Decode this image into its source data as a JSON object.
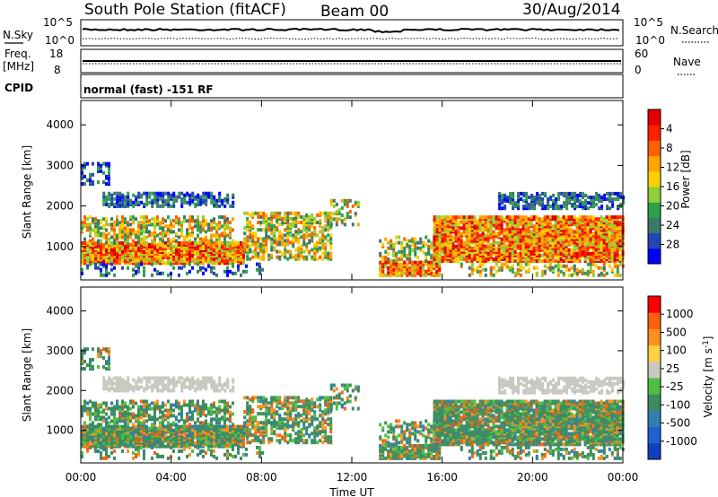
{
  "header": {
    "station": "South Pole Station (fitACF)",
    "beam": "Beam 00",
    "date": "30/Aug/2014"
  },
  "top_panels": {
    "nsky_label": "N.Sky",
    "nsearch_label": "N.Search",
    "noise_ticks": [
      "10^5",
      "10^0"
    ],
    "freq_label_1": "Freq.",
    "freq_label_2": "[MHz]",
    "freq_ticks": [
      "18",
      "8"
    ],
    "nave_label": "Nave",
    "nave_ticks": [
      "60",
      "0"
    ],
    "cpid_label": "CPID",
    "cpid_text": "normal (fast) -151 RF"
  },
  "chart_data": [
    {
      "type": "heatmap",
      "name": "power",
      "ylabel": "Slant Range [km]",
      "xlabel": "",
      "x_ticks": [
        "00:00",
        "04:00",
        "08:00",
        "12:00",
        "16:00",
        "20:00",
        "00:00"
      ],
      "y_ticks": [
        1000,
        2000,
        3000,
        4000
      ],
      "ylim": [
        180,
        4600
      ],
      "colorbar": {
        "label": "Power [dB]",
        "ticks": [
          "4",
          "8",
          "12",
          "16",
          "20",
          "24",
          "28"
        ],
        "colors": [
          "#0000ff",
          "#2346b5",
          "#3a7a6a",
          "#2fa04a",
          "#8fd03a",
          "#ffd000",
          "#ffa500",
          "#ff6000",
          "#ff2000",
          "#e00000"
        ]
      }
    },
    {
      "type": "heatmap",
      "name": "velocity",
      "ylabel": "Slant Range [km]",
      "xlabel": "Time UT",
      "x_ticks": [
        "00:00",
        "04:00",
        "08:00",
        "12:00",
        "16:00",
        "20:00",
        "00:00"
      ],
      "y_ticks": [
        1000,
        2000,
        3000,
        4000
      ],
      "ylim": [
        180,
        4600
      ],
      "colorbar": {
        "label": "Velocity [m s",
        "label_sup": "-1",
        "label_close": "]",
        "ticks": [
          "1000",
          "500",
          "100",
          "25",
          "-25",
          "-100",
          "-500",
          "-1000"
        ],
        "colors": [
          "#1040c0",
          "#2060d0",
          "#2f7fb0",
          "#3d8c60",
          "#50c040",
          "#c8c8c0",
          "#ffd040",
          "#ff9020",
          "#ff6010",
          "#ff0000"
        ]
      }
    }
  ]
}
